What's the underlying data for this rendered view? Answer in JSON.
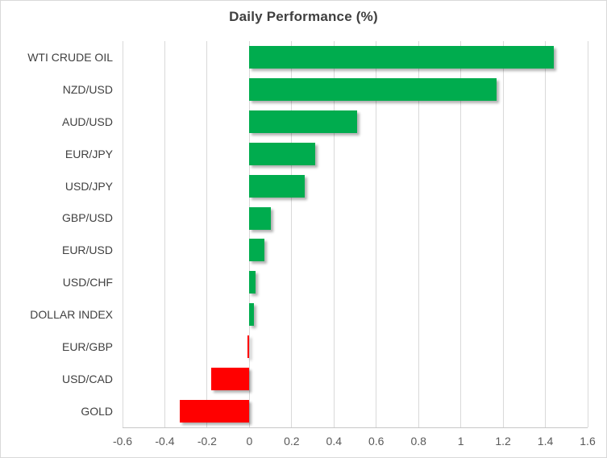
{
  "chart_data": {
    "type": "bar",
    "orientation": "horizontal",
    "title": "Daily Performance (%)",
    "categories": [
      "WTI CRUDE OIL",
      "NZD/USD",
      "AUD/USD",
      "EUR/JPY",
      "USD/JPY",
      "GBP/USD",
      "EUR/USD",
      "USD/CHF",
      "DOLLAR INDEX",
      "EUR/GBP",
      "USD/CAD",
      "GOLD"
    ],
    "values": [
      1.44,
      1.17,
      0.51,
      0.31,
      0.26,
      0.1,
      0.07,
      0.03,
      0.02,
      -0.01,
      -0.18,
      -0.33
    ],
    "xlabel": "",
    "ylabel": "",
    "xlim": [
      -0.6,
      1.6
    ],
    "xticks": [
      -0.6,
      -0.4,
      -0.2,
      0,
      0.2,
      0.4,
      0.6,
      0.8,
      1,
      1.2,
      1.4,
      1.6
    ],
    "xtick_labels": [
      "-0.6",
      "-0.4",
      "-0.2",
      "0",
      "0.2",
      "0.4",
      "0.6",
      "0.8",
      "1",
      "1.2",
      "1.4",
      "1.6"
    ],
    "grid": true,
    "legend": false,
    "colors": {
      "positive": "#00ac4e",
      "negative": "#ff0000",
      "gridline": "#d9d9d9",
      "axis_line": "#c8c8c8",
      "title_text": "#3f3f3f",
      "category_text": "#404040",
      "tick_text": "#595959",
      "chart_border": "#d9d9d9",
      "background": "#ffffff"
    }
  }
}
